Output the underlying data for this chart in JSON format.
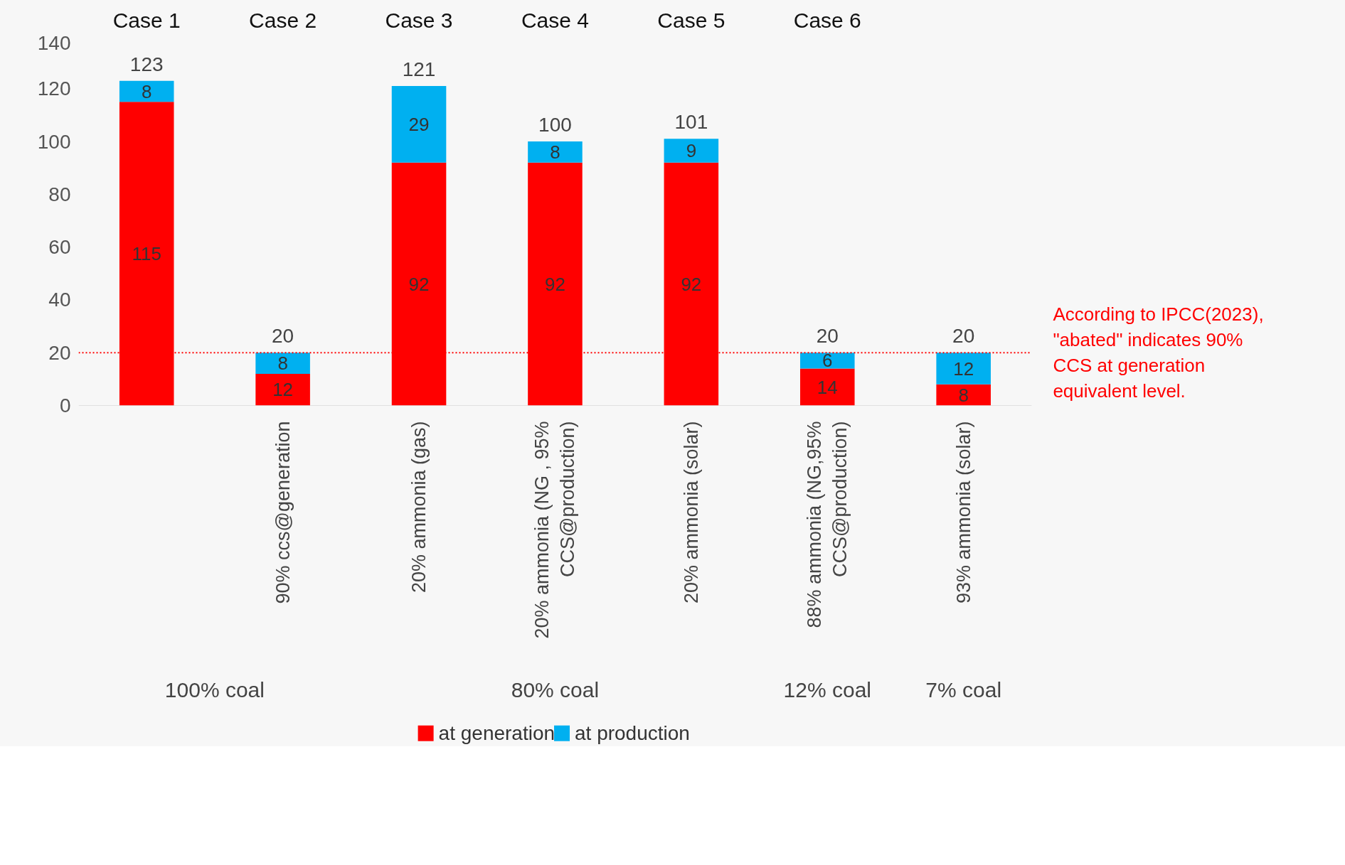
{
  "chart_data": {
    "type": "bar",
    "stacked": true,
    "categories": [
      null,
      "90% ccs@generation",
      "20% ammonia (gas)",
      "20% ammonia (NG , 95% CCS@production)",
      "20% ammonia (solar)",
      "88% ammonia (NG,95% CCS@production)",
      "93% ammonia (solar)"
    ],
    "series": [
      {
        "name": "at generation",
        "color": "#ff0000",
        "values": [
          115,
          12,
          92,
          92,
          92,
          14,
          8
        ]
      },
      {
        "name": "at production",
        "color": "#00b0f0",
        "values": [
          8,
          8,
          29,
          8,
          9,
          6,
          12
        ]
      }
    ],
    "totals": [
      "123",
      "20",
      "121",
      "100",
      "101",
      "20",
      "20"
    ],
    "data_labels": true,
    "ylim": [
      0,
      140
    ],
    "yticks": [
      0,
      20,
      40,
      60,
      80,
      100,
      120,
      140
    ],
    "grid": false,
    "legend": "bottom",
    "ref_lines": [
      {
        "axis": "y",
        "value": 20,
        "label": "According to IPCC(2023), \"abated\" indicates 90% CCS at generation equivalent level.",
        "color": "#ff0000",
        "line_style": "dotted"
      }
    ],
    "annotations": [
      "Case 1",
      "Case 2",
      "Case 3",
      "Case 4",
      "Case 5",
      "Case 6",
      "100% coal",
      "80% coal",
      "12% coal",
      "7% coal"
    ]
  }
}
